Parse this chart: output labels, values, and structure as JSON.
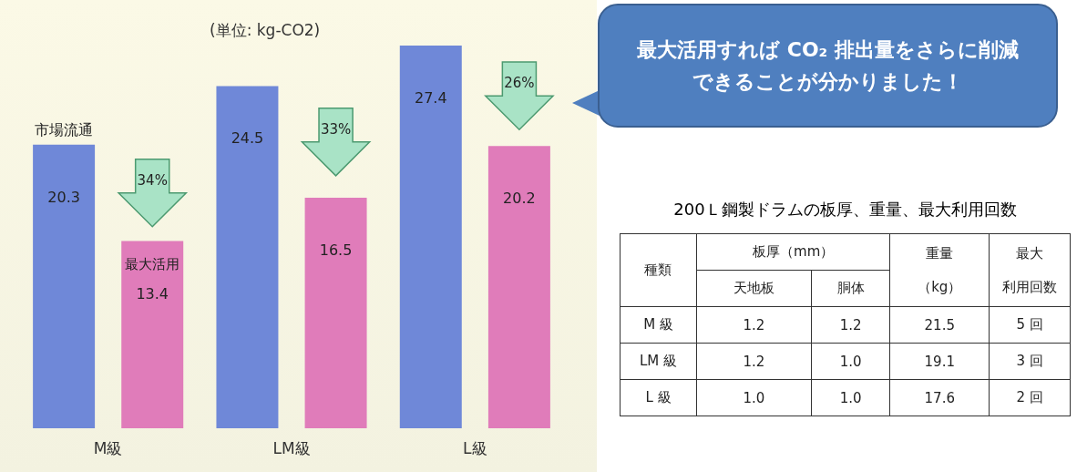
{
  "chart_data": [
    {
      "type": "bar",
      "categories": [
        "M級",
        "LM級",
        "L級"
      ],
      "series": [
        {
          "name": "市場流通",
          "color": "#6f88d8",
          "values": [
            20.3,
            24.5,
            27.4
          ]
        },
        {
          "name": "最大活用",
          "color": "#e07cba",
          "values": [
            13.4,
            16.5,
            20.2
          ]
        }
      ],
      "data_labels": true,
      "legend": false,
      "annotations": [
        "(単位: kg-CO2)",
        "34%",
        "33%",
        "26%",
        "最大活用すれば CO₂ 排出量をさらに削減できることが分かりました！"
      ]
    },
    {
      "type": "other",
      "title": "200Ｌ鋼製ドラムの板厚、重量、最大利用回数",
      "annotations": [
        "種類",
        "板厚（mm）",
        "重量",
        "（kg）",
        "最大",
        "利用回数",
        "天地板",
        "胴体",
        "M 級",
        "1.2",
        "1.2",
        "21.5",
        "5 回",
        "LM 級",
        "1.2",
        "1.0",
        "19.1",
        "3 回",
        "L 級",
        "1.0",
        "1.0",
        "17.6",
        "2 回"
      ]
    }
  ]
}
